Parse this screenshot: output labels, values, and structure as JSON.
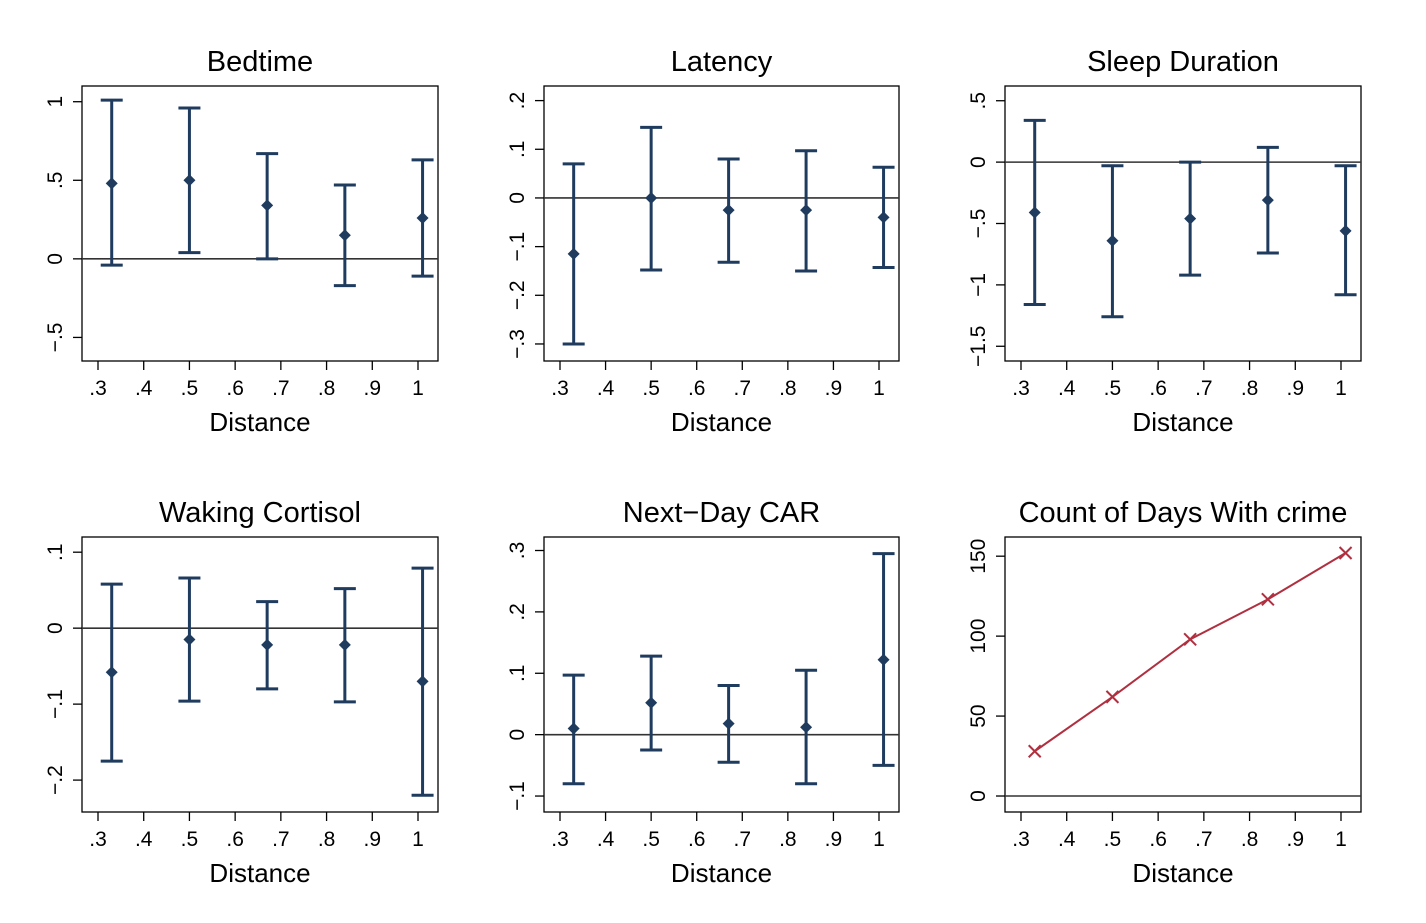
{
  "colors": {
    "point": "#1f3b5e",
    "line": "#b03040",
    "axis": "#000000",
    "refline": "#333333"
  },
  "chart_data": [
    {
      "type": "scatter",
      "title": "Bedtime",
      "xlabel": "Distance",
      "xlim": [
        0.3,
        1.0
      ],
      "xticks": [
        {
          "v": 0.3,
          "t": ".3"
        },
        {
          "v": 0.4,
          "t": ".4"
        },
        {
          "v": 0.5,
          "t": ".5"
        },
        {
          "v": 0.6,
          "t": ".6"
        },
        {
          "v": 0.7,
          "t": ".7"
        },
        {
          "v": 0.8,
          "t": ".8"
        },
        {
          "v": 0.9,
          "t": ".9"
        },
        {
          "v": 1.0,
          "t": "1"
        }
      ],
      "ylim": [
        -0.65,
        1.1
      ],
      "yticks": [
        {
          "v": -0.5,
          "t": "−.5"
        },
        {
          "v": 0,
          "t": "0"
        },
        {
          "v": 0.5,
          "t": ".5"
        },
        {
          "v": 1,
          "t": "1"
        }
      ],
      "refline": 0,
      "errorbars": true,
      "points": [
        {
          "x": 0.33,
          "y": 0.48,
          "lo": -0.04,
          "hi": 1.01
        },
        {
          "x": 0.5,
          "y": 0.5,
          "lo": 0.04,
          "hi": 0.96
        },
        {
          "x": 0.67,
          "y": 0.34,
          "lo": 0.0,
          "hi": 0.67
        },
        {
          "x": 0.84,
          "y": 0.15,
          "lo": -0.17,
          "hi": 0.47
        },
        {
          "x": 1.01,
          "y": 0.26,
          "lo": -0.11,
          "hi": 0.63
        }
      ]
    },
    {
      "type": "scatter",
      "title": "Latency",
      "xlabel": "Distance",
      "xlim": [
        0.3,
        1.0
      ],
      "xticks": [
        {
          "v": 0.3,
          "t": ".3"
        },
        {
          "v": 0.4,
          "t": ".4"
        },
        {
          "v": 0.5,
          "t": ".5"
        },
        {
          "v": 0.6,
          "t": ".6"
        },
        {
          "v": 0.7,
          "t": ".7"
        },
        {
          "v": 0.8,
          "t": ".8"
        },
        {
          "v": 0.9,
          "t": ".9"
        },
        {
          "v": 1.0,
          "t": "1"
        }
      ],
      "ylim": [
        -0.335,
        0.23
      ],
      "yticks": [
        {
          "v": -0.3,
          "t": "−.3"
        },
        {
          "v": -0.2,
          "t": "−.2"
        },
        {
          "v": -0.1,
          "t": "−.1"
        },
        {
          "v": 0,
          "t": "0"
        },
        {
          "v": 0.1,
          "t": ".1"
        },
        {
          "v": 0.2,
          "t": ".2"
        }
      ],
      "refline": 0,
      "errorbars": true,
      "points": [
        {
          "x": 0.33,
          "y": -0.115,
          "lo": -0.3,
          "hi": 0.07
        },
        {
          "x": 0.5,
          "y": 0.0,
          "lo": -0.148,
          "hi": 0.145
        },
        {
          "x": 0.67,
          "y": -0.025,
          "lo": -0.132,
          "hi": 0.08
        },
        {
          "x": 0.84,
          "y": -0.025,
          "lo": -0.15,
          "hi": 0.097
        },
        {
          "x": 1.01,
          "y": -0.04,
          "lo": -0.143,
          "hi": 0.063
        }
      ]
    },
    {
      "type": "scatter",
      "title": "Sleep Duration",
      "xlabel": "Distance",
      "xlim": [
        0.3,
        1.0
      ],
      "xticks": [
        {
          "v": 0.3,
          "t": ".3"
        },
        {
          "v": 0.4,
          "t": ".4"
        },
        {
          "v": 0.5,
          "t": ".5"
        },
        {
          "v": 0.6,
          "t": ".6"
        },
        {
          "v": 0.7,
          "t": ".7"
        },
        {
          "v": 0.8,
          "t": ".8"
        },
        {
          "v": 0.9,
          "t": ".9"
        },
        {
          "v": 1.0,
          "t": "1"
        }
      ],
      "ylim": [
        -1.62,
        0.62
      ],
      "yticks": [
        {
          "v": -1.5,
          "t": "−1.5"
        },
        {
          "v": -1,
          "t": "−1"
        },
        {
          "v": -0.5,
          "t": "−.5"
        },
        {
          "v": 0,
          "t": "0"
        },
        {
          "v": 0.5,
          "t": ".5"
        }
      ],
      "refline": 0,
      "errorbars": true,
      "points": [
        {
          "x": 0.33,
          "y": -0.41,
          "lo": -1.16,
          "hi": 0.34
        },
        {
          "x": 0.5,
          "y": -0.64,
          "lo": -1.26,
          "hi": -0.03
        },
        {
          "x": 0.67,
          "y": -0.46,
          "lo": -0.92,
          "hi": 0.0
        },
        {
          "x": 0.84,
          "y": -0.31,
          "lo": -0.74,
          "hi": 0.12
        },
        {
          "x": 1.01,
          "y": -0.56,
          "lo": -1.08,
          "hi": -0.03
        }
      ]
    },
    {
      "type": "scatter",
      "title": "Waking Cortisol",
      "xlabel": "Distance",
      "xlim": [
        0.3,
        1.0
      ],
      "xticks": [
        {
          "v": 0.3,
          "t": ".3"
        },
        {
          "v": 0.4,
          "t": ".4"
        },
        {
          "v": 0.5,
          "t": ".5"
        },
        {
          "v": 0.6,
          "t": ".6"
        },
        {
          "v": 0.7,
          "t": ".7"
        },
        {
          "v": 0.8,
          "t": ".8"
        },
        {
          "v": 0.9,
          "t": ".9"
        },
        {
          "v": 1.0,
          "t": "1"
        }
      ],
      "ylim": [
        -0.242,
        0.12
      ],
      "yticks": [
        {
          "v": -0.2,
          "t": "−.2"
        },
        {
          "v": -0.1,
          "t": "−.1"
        },
        {
          "v": 0,
          "t": "0"
        },
        {
          "v": 0.1,
          "t": ".1"
        }
      ],
      "refline": 0,
      "errorbars": true,
      "points": [
        {
          "x": 0.33,
          "y": -0.058,
          "lo": -0.175,
          "hi": 0.058
        },
        {
          "x": 0.5,
          "y": -0.015,
          "lo": -0.096,
          "hi": 0.066
        },
        {
          "x": 0.67,
          "y": -0.022,
          "lo": -0.08,
          "hi": 0.035
        },
        {
          "x": 0.84,
          "y": -0.022,
          "lo": -0.097,
          "hi": 0.052
        },
        {
          "x": 1.01,
          "y": -0.07,
          "lo": -0.22,
          "hi": 0.079
        }
      ]
    },
    {
      "type": "scatter",
      "title": "Next−Day CAR",
      "xlabel": "Distance",
      "xlim": [
        0.3,
        1.0
      ],
      "xticks": [
        {
          "v": 0.3,
          "t": ".3"
        },
        {
          "v": 0.4,
          "t": ".4"
        },
        {
          "v": 0.5,
          "t": ".5"
        },
        {
          "v": 0.6,
          "t": ".6"
        },
        {
          "v": 0.7,
          "t": ".7"
        },
        {
          "v": 0.8,
          "t": ".8"
        },
        {
          "v": 0.9,
          "t": ".9"
        },
        {
          "v": 1.0,
          "t": "1"
        }
      ],
      "ylim": [
        -0.126,
        0.322
      ],
      "yticks": [
        {
          "v": -0.1,
          "t": "−.1"
        },
        {
          "v": 0,
          "t": "0"
        },
        {
          "v": 0.1,
          "t": ".1"
        },
        {
          "v": 0.2,
          "t": ".2"
        },
        {
          "v": 0.3,
          "t": ".3"
        }
      ],
      "refline": 0,
      "errorbars": true,
      "points": [
        {
          "x": 0.33,
          "y": 0.01,
          "lo": -0.08,
          "hi": 0.097
        },
        {
          "x": 0.5,
          "y": 0.052,
          "lo": -0.025,
          "hi": 0.128
        },
        {
          "x": 0.67,
          "y": 0.018,
          "lo": -0.045,
          "hi": 0.08
        },
        {
          "x": 0.84,
          "y": 0.012,
          "lo": -0.08,
          "hi": 0.105
        },
        {
          "x": 1.01,
          "y": 0.122,
          "lo": -0.05,
          "hi": 0.295
        }
      ]
    },
    {
      "type": "line",
      "title": "Count of Days With crime",
      "xlabel": "Distance",
      "xlim": [
        0.3,
        1.0
      ],
      "xticks": [
        {
          "v": 0.3,
          "t": ".3"
        },
        {
          "v": 0.4,
          "t": ".4"
        },
        {
          "v": 0.5,
          "t": ".5"
        },
        {
          "v": 0.6,
          "t": ".6"
        },
        {
          "v": 0.7,
          "t": ".7"
        },
        {
          "v": 0.8,
          "t": ".8"
        },
        {
          "v": 0.9,
          "t": ".9"
        },
        {
          "v": 1.0,
          "t": "1"
        }
      ],
      "ylim": [
        -10,
        162
      ],
      "yticks": [
        {
          "v": 0,
          "t": "0"
        },
        {
          "v": 50,
          "t": "50"
        },
        {
          "v": 100,
          "t": "100"
        },
        {
          "v": 150,
          "t": "150"
        }
      ],
      "refline": 0,
      "errorbars": false,
      "points": [
        {
          "x": 0.33,
          "y": 28
        },
        {
          "x": 0.5,
          "y": 62
        },
        {
          "x": 0.67,
          "y": 98
        },
        {
          "x": 0.84,
          "y": 123
        },
        {
          "x": 1.01,
          "y": 152
        }
      ]
    }
  ]
}
